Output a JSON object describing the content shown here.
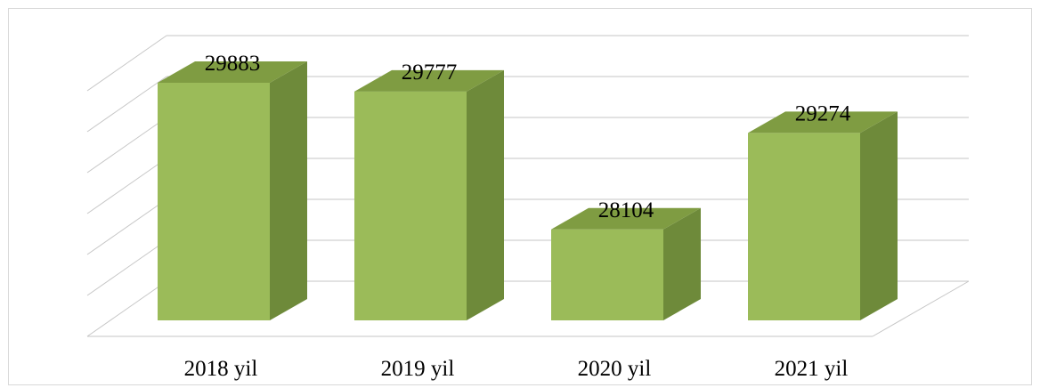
{
  "chart_data": {
    "type": "bar",
    "categories": [
      "2018 yil",
      "2019 yil",
      "2020 yil",
      "2021 yil"
    ],
    "values": [
      29883,
      29777,
      28104,
      29274
    ],
    "title": "",
    "xlabel": "",
    "ylabel": "",
    "ylim": [
      27000,
      30000
    ],
    "grid": true,
    "legend": "none",
    "colors": {
      "bar_front": "#9bbb59",
      "bar_side": "#6e8a3a",
      "bar_top": "#7f9c42",
      "grid": "#c6c6c6"
    }
  }
}
